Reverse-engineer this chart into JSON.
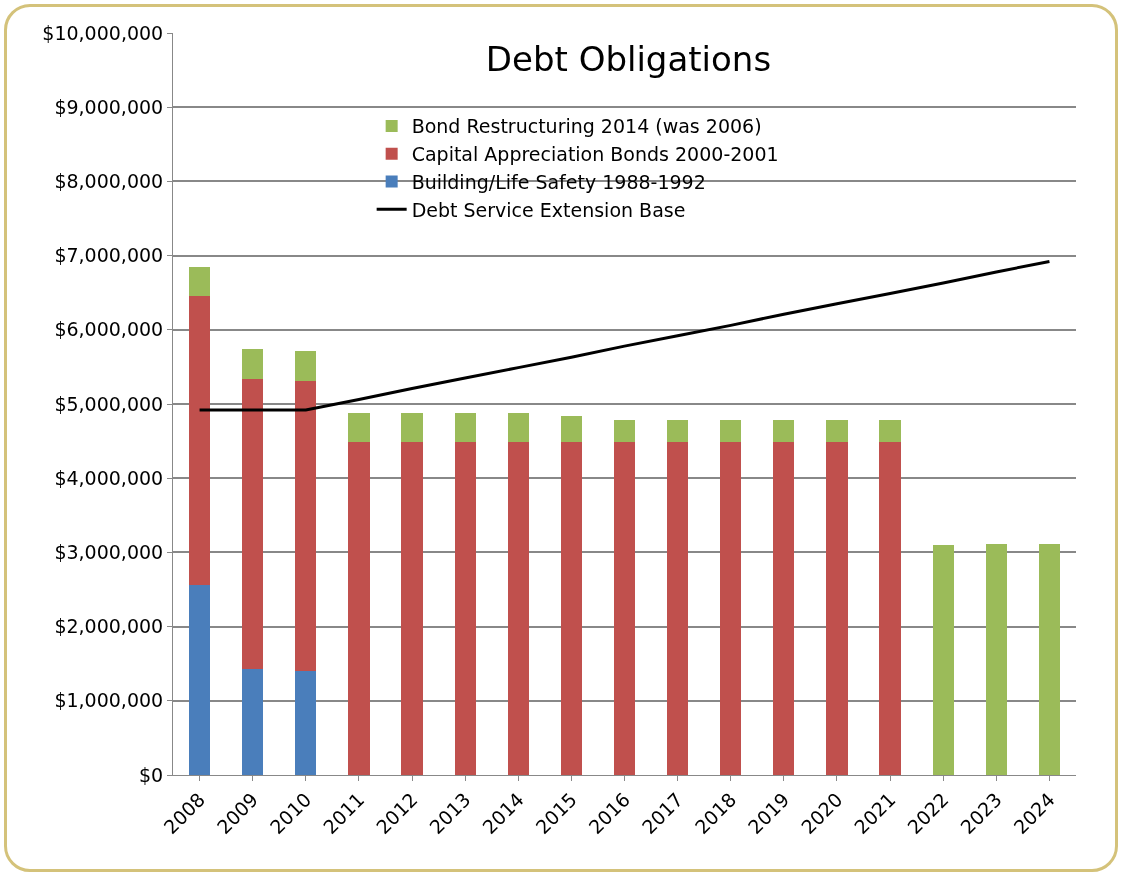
{
  "chart_data": {
    "type": "bar",
    "title": "Debt Obligations",
    "stacked": true,
    "categories": [
      "2008",
      "2009",
      "2010",
      "2011",
      "2012",
      "2013",
      "2014",
      "2015",
      "2016",
      "2017",
      "2018",
      "2019",
      "2020",
      "2021",
      "2022",
      "2023",
      "2024"
    ],
    "series": [
      {
        "name": "Building/Life Safety 1988-1992",
        "color": "#4a7ebb",
        "values": [
          2560000,
          1430000,
          1400000,
          null,
          null,
          null,
          null,
          null,
          null,
          null,
          null,
          null,
          null,
          null,
          null,
          null,
          null
        ]
      },
      {
        "name": "Capital Appreciation Bonds 2000-2001",
        "color": "#c0504d",
        "values": [
          3900000,
          3910000,
          3910000,
          4490000,
          4490000,
          4490000,
          4490000,
          4490000,
          4490000,
          4490000,
          4490000,
          4490000,
          4490000,
          4490000,
          null,
          null,
          null
        ]
      },
      {
        "name": "Bond Restructuring 2014 (was 2006)",
        "color": "#9bbb59",
        "values": [
          390000,
          400000,
          400000,
          390000,
          390000,
          390000,
          390000,
          350000,
          300000,
          300000,
          300000,
          300000,
          300000,
          300000,
          3100000,
          3120000,
          3120000
        ]
      },
      {
        "name": "Debt Service Extension Base",
        "type": "line",
        "color": "#000000",
        "line_style": "solid",
        "marker": "none",
        "values": [
          4920000,
          4920000,
          4920000,
          5060000,
          5210000,
          5350000,
          5490000,
          5630000,
          5780000,
          5920000,
          6060000,
          6210000,
          6350000,
          6490000,
          6630000,
          6780000,
          6920000
        ]
      }
    ],
    "ylim": [
      0,
      10000000
    ],
    "yticks": [
      {
        "value": 0,
        "label": "$0"
      },
      {
        "value": 1000000,
        "label": "$1,000,000"
      },
      {
        "value": 2000000,
        "label": "$2,000,000"
      },
      {
        "value": 3000000,
        "label": "$3,000,000"
      },
      {
        "value": 4000000,
        "label": "$4,000,000"
      },
      {
        "value": 5000000,
        "label": "$5,000,000"
      },
      {
        "value": 6000000,
        "label": "$6,000,000"
      },
      {
        "value": 7000000,
        "label": "$7,000,000"
      },
      {
        "value": 8000000,
        "label": "$8,000,000"
      },
      {
        "value": 9000000,
        "label": "$9,000,000"
      },
      {
        "value": 10000000,
        "label": "$10,000,000"
      }
    ],
    "grid": "y",
    "legend": "top"
  }
}
